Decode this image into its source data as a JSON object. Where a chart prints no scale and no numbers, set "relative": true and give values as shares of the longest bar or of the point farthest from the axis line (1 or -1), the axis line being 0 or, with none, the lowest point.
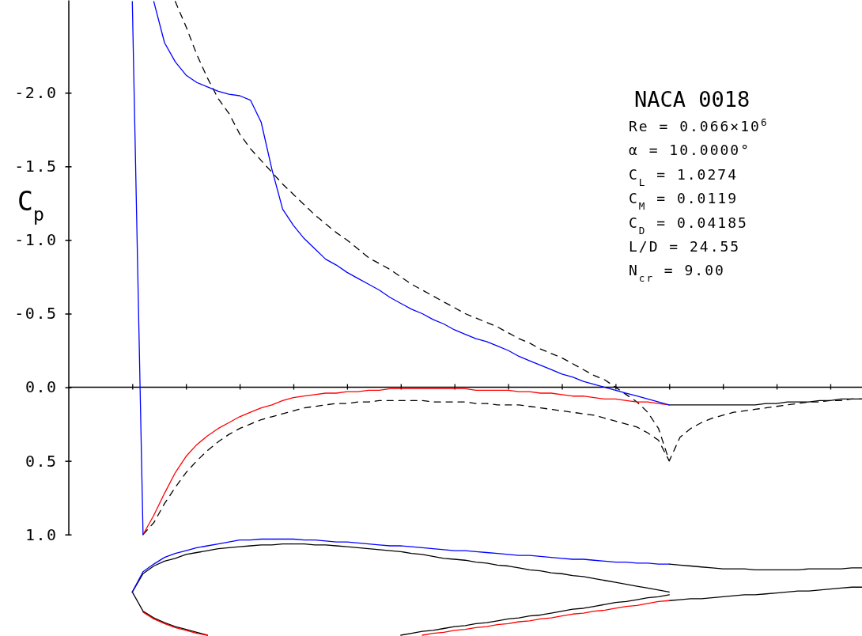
{
  "chart_data": [
    {
      "type": "line",
      "title": "NACA 0018",
      "ylabel": "C$_{p}$",
      "annotations": [
        "Re = 0.066×10$^{6}$",
        "α = 10.0000°",
        "C$_{L}$ = 1.0274",
        "C$_{M}$ = 0.0119",
        "C$_{D}$ = 0.04185",
        "L/D = 24.55",
        "N$_{cr}$ = 9.00"
      ],
      "categories": [
        null,
        null,
        null,
        null,
        null,
        null,
        null,
        null,
        null,
        null,
        null,
        null,
        null,
        null,
        null,
        null,
        null,
        null,
        null,
        null,
        null,
        null,
        null,
        null,
        null,
        null,
        null,
        null,
        null,
        null,
        null,
        null,
        null,
        null,
        null,
        null,
        null,
        null,
        null,
        null,
        null,
        null,
        null,
        null,
        null,
        null,
        null,
        null,
        null,
        null,
        null,
        null,
        null,
        null,
        null,
        null,
        null,
        null,
        null,
        null,
        null,
        null,
        null,
        null,
        null,
        null,
        null,
        null,
        null
      ],
      "ylim": [
        1,
        -2.63
      ],
      "yticks": [
        {
          "value": -2,
          "label": "-2.0"
        },
        -1.5,
        {
          "value": -1,
          "label": "-1.0"
        },
        -0.5,
        {
          "value": 0,
          "label": "0.0"
        },
        0.5,
        {
          "value": 1,
          "label": "1.0"
        }
      ],
      "series": [
        {
          "color": "#000000",
          "line_style": "dashed",
          "values": [
            null,
            null,
            null,
            null,
            -2.62,
            -2.45,
            -2.26,
            -2.1,
            -1.96,
            -1.86,
            -1.72,
            -1.62,
            -1.54,
            -1.46,
            -1.38,
            -1.31,
            -1.24,
            -1.17,
            -1.11,
            -1.05,
            -1.0,
            -0.94,
            -0.88,
            -0.84,
            -0.8,
            -0.75,
            -0.7,
            -0.66,
            -0.62,
            -0.58,
            -0.54,
            -0.5,
            -0.47,
            -0.44,
            -0.41,
            -0.37,
            -0.33,
            -0.3,
            -0.26,
            -0.23,
            -0.2,
            -0.16,
            -0.12,
            -0.08,
            -0.05,
            0.0,
            0.05,
            0.1,
            0.17,
            0.28,
            0.5,
            0.34,
            0.28,
            0.24,
            0.21,
            0.19,
            0.17,
            0.16,
            0.15,
            0.14,
            0.13,
            0.12,
            0.11,
            0.1,
            0.1,
            0.09,
            0.09,
            0.08,
            0.08
          ]
        },
        {
          "color": "#000000",
          "line_style": "dashed",
          "values": [
            null,
            1.0,
            0.92,
            0.79,
            0.68,
            0.58,
            0.5,
            0.43,
            0.37,
            0.32,
            0.28,
            0.25,
            0.22,
            0.2,
            0.18,
            0.16,
            0.14,
            0.13,
            0.12,
            0.11,
            0.11,
            0.1,
            0.1,
            0.09,
            0.09,
            0.09,
            0.09,
            0.09,
            0.1,
            0.1,
            0.1,
            0.1,
            0.11,
            0.11,
            0.12,
            0.12,
            0.12,
            0.13,
            0.14,
            0.15,
            0.16,
            0.17,
            0.18,
            0.19,
            0.21,
            0.23,
            0.25,
            0.27,
            0.31,
            0.36,
            0.5,
            null,
            null,
            null,
            null,
            null,
            null,
            null,
            null,
            null,
            null,
            null,
            null,
            null,
            null,
            null,
            null,
            null,
            null
          ]
        },
        {
          "color": "#000000",
          "values": [
            null,
            null,
            null,
            null,
            null,
            null,
            null,
            null,
            null,
            null,
            null,
            null,
            null,
            null,
            null,
            null,
            null,
            null,
            null,
            null,
            null,
            null,
            null,
            null,
            null,
            null,
            null,
            null,
            null,
            null,
            null,
            null,
            null,
            null,
            null,
            null,
            null,
            null,
            null,
            null,
            null,
            null,
            null,
            null,
            null,
            null,
            null,
            null,
            null,
            null,
            0.12,
            0.12,
            0.12,
            0.12,
            0.12,
            0.12,
            0.12,
            0.12,
            0.12,
            0.11,
            0.11,
            0.1,
            0.1,
            0.1,
            0.09,
            0.09,
            0.08,
            0.08,
            0.08
          ]
        },
        {
          "color": "#ff0000",
          "values": [
            null,
            1.0,
            0.87,
            0.72,
            0.58,
            0.47,
            0.39,
            0.33,
            0.28,
            0.24,
            0.2,
            0.17,
            0.14,
            0.12,
            0.09,
            0.07,
            0.06,
            0.05,
            0.04,
            0.04,
            0.03,
            0.03,
            0.02,
            0.02,
            0.01,
            0.01,
            0.01,
            0.01,
            0.01,
            0.01,
            0.01,
            0.01,
            0.02,
            0.02,
            0.02,
            0.02,
            0.03,
            0.03,
            0.04,
            0.04,
            0.05,
            0.06,
            0.06,
            0.07,
            0.08,
            0.08,
            0.09,
            0.1,
            0.1,
            0.11,
            0.12,
            null,
            null,
            null,
            null,
            null,
            null,
            null,
            null,
            null,
            null,
            null,
            null,
            null,
            null,
            null,
            null,
            null,
            null
          ]
        },
        {
          "color": "#0000ff",
          "values": [
            -2.62,
            1.0,
            null,
            null,
            null,
            null,
            null,
            null,
            null,
            null,
            null,
            null,
            null,
            null,
            null,
            null,
            null,
            null,
            null,
            null,
            null,
            null,
            null,
            null,
            null,
            null,
            null,
            null,
            null,
            null,
            null,
            null,
            null,
            null,
            null,
            null,
            null,
            null,
            null,
            null,
            null,
            null,
            null,
            null,
            null,
            null,
            null,
            null,
            null,
            null,
            null,
            null,
            null,
            null,
            null,
            null,
            null,
            null,
            null,
            null,
            null,
            null,
            null,
            null,
            null,
            null,
            null,
            null,
            null
          ]
        },
        {
          "color": "#0000ff",
          "values": [
            null,
            null,
            -2.62,
            -2.34,
            -2.21,
            -2.12,
            -2.07,
            -2.04,
            -2.01,
            -1.99,
            -1.98,
            -1.95,
            -1.8,
            -1.48,
            -1.21,
            -1.1,
            -1.01,
            -0.94,
            -0.87,
            -0.83,
            -0.78,
            -0.74,
            -0.7,
            -0.66,
            -0.61,
            -0.57,
            -0.53,
            -0.5,
            -0.46,
            -0.43,
            -0.39,
            -0.36,
            -0.33,
            -0.31,
            -0.28,
            -0.25,
            -0.21,
            -0.18,
            -0.15,
            -0.12,
            -0.09,
            -0.07,
            -0.04,
            -0.02,
            0.0,
            0.02,
            0.04,
            0.06,
            0.08,
            0.1,
            0.12,
            null,
            null,
            null,
            null,
            null,
            null,
            null,
            null,
            null,
            null,
            null,
            null,
            null,
            null,
            null,
            null,
            null,
            null
          ]
        }
      ]
    },
    {
      "type": "line",
      "relative": true,
      "categories": [
        null,
        null,
        null,
        null,
        null,
        null,
        null,
        null,
        null,
        null,
        null,
        null,
        null,
        null,
        null,
        null,
        null,
        null,
        null,
        null,
        null,
        null,
        null,
        null,
        null,
        null,
        null,
        null,
        null,
        null,
        null,
        null,
        null,
        null,
        null,
        null,
        null,
        null,
        null,
        null,
        null,
        null,
        null,
        null,
        null,
        null,
        null,
        null,
        null,
        null,
        null,
        null,
        null,
        null,
        null,
        null,
        null,
        null,
        null,
        null,
        null,
        null,
        null,
        null,
        null,
        null,
        null,
        null,
        null
      ],
      "series": [
        {
          "color": "#000000",
          "values": [
            0.45,
            0.64,
            0.72,
            0.77,
            0.8,
            0.84,
            0.86,
            0.88,
            0.9,
            0.91,
            0.92,
            0.93,
            0.94,
            0.94,
            0.95,
            0.95,
            0.95,
            0.94,
            0.94,
            0.93,
            0.92,
            0.91,
            0.9,
            0.89,
            0.88,
            0.87,
            0.85,
            0.84,
            0.82,
            0.8,
            0.79,
            0.78,
            0.76,
            0.75,
            0.73,
            0.72,
            0.7,
            0.68,
            0.67,
            0.65,
            0.64,
            0.62,
            0.61,
            0.59,
            0.57,
            0.55,
            0.53,
            0.51,
            0.49,
            0.47,
            0.45,
            null,
            null,
            null,
            null,
            null,
            null,
            null,
            null,
            null,
            null,
            null,
            null,
            null,
            null,
            null,
            null,
            null,
            null
          ]
        },
        {
          "color": "#000000",
          "values": [
            0.45,
            0.25,
            0.18,
            0.13,
            0.09,
            0.06,
            0.03,
            0.0,
            null,
            null,
            null,
            null,
            null,
            null,
            null,
            null,
            null,
            null,
            null,
            null,
            null,
            null,
            null,
            null,
            null,
            0.0,
            0.02,
            0.04,
            0.05,
            0.07,
            0.09,
            0.1,
            0.12,
            0.13,
            0.15,
            0.17,
            0.18,
            0.2,
            0.21,
            0.23,
            0.25,
            0.27,
            0.28,
            0.3,
            0.32,
            0.34,
            0.35,
            0.37,
            0.39,
            0.4,
            0.42,
            null,
            null,
            null,
            null,
            null,
            null,
            null,
            null,
            null,
            null,
            null,
            null,
            null,
            null,
            null,
            null,
            null,
            null
          ]
        },
        {
          "color": "#000000",
          "values": [
            null,
            null,
            null,
            null,
            null,
            null,
            null,
            null,
            null,
            null,
            null,
            null,
            null,
            null,
            null,
            null,
            null,
            null,
            null,
            null,
            null,
            null,
            null,
            null,
            null,
            null,
            null,
            null,
            null,
            null,
            null,
            null,
            null,
            null,
            null,
            null,
            null,
            null,
            null,
            null,
            null,
            null,
            null,
            null,
            null,
            null,
            null,
            null,
            null,
            null,
            0.74,
            0.73,
            0.72,
            0.71,
            0.7,
            0.69,
            0.69,
            0.69,
            0.68,
            0.68,
            0.68,
            0.68,
            0.68,
            0.69,
            0.69,
            0.69,
            0.69,
            0.7,
            0.7
          ]
        },
        {
          "color": "#000000",
          "values": [
            null,
            null,
            null,
            null,
            null,
            null,
            null,
            null,
            null,
            null,
            null,
            null,
            null,
            null,
            null,
            null,
            null,
            null,
            null,
            null,
            null,
            null,
            null,
            null,
            null,
            null,
            null,
            null,
            null,
            null,
            null,
            null,
            null,
            null,
            null,
            null,
            null,
            null,
            null,
            null,
            null,
            null,
            null,
            null,
            null,
            null,
            null,
            null,
            null,
            null,
            0.36,
            0.37,
            0.38,
            0.38,
            0.39,
            0.4,
            0.41,
            0.42,
            0.42,
            0.43,
            0.44,
            0.45,
            0.46,
            0.46,
            0.47,
            0.48,
            0.49,
            0.5,
            0.5
          ]
        },
        {
          "color": "#0000ff",
          "values": [
            0.45,
            0.66,
            0.74,
            0.81,
            0.85,
            0.88,
            0.91,
            0.93,
            0.95,
            0.97,
            0.99,
            0.99,
            1.0,
            1.0,
            1.0,
            1.0,
            0.99,
            0.99,
            0.98,
            0.97,
            0.97,
            0.96,
            0.95,
            0.94,
            0.93,
            0.93,
            0.92,
            0.91,
            0.9,
            0.89,
            0.88,
            0.88,
            0.87,
            0.86,
            0.85,
            0.84,
            0.83,
            0.83,
            0.82,
            0.81,
            0.8,
            0.79,
            0.79,
            0.78,
            0.77,
            0.76,
            0.76,
            0.75,
            0.75,
            0.74,
            0.74,
            null,
            null,
            null,
            null,
            null,
            null,
            null,
            null,
            null,
            null,
            null,
            null,
            null,
            null,
            null,
            null,
            null,
            null
          ]
        },
        {
          "color": "#ff0000",
          "values": [
            null,
            0.24,
            0.17,
            0.12,
            0.08,
            0.05,
            0.02,
            0.0,
            null,
            null,
            null,
            null,
            null,
            null,
            null,
            null,
            null,
            null,
            null,
            null,
            null,
            null,
            null,
            null,
            null,
            null,
            null,
            0.0,
            0.02,
            0.03,
            0.05,
            0.06,
            0.08,
            0.09,
            0.11,
            0.12,
            0.14,
            0.15,
            0.17,
            0.18,
            0.2,
            0.22,
            0.23,
            0.25,
            0.26,
            0.28,
            0.3,
            0.31,
            0.33,
            0.35,
            0.36,
            null,
            null,
            null,
            null,
            null,
            null,
            null,
            null,
            null,
            null,
            null,
            null,
            null,
            null,
            null,
            null,
            null,
            null
          ]
        }
      ]
    }
  ]
}
